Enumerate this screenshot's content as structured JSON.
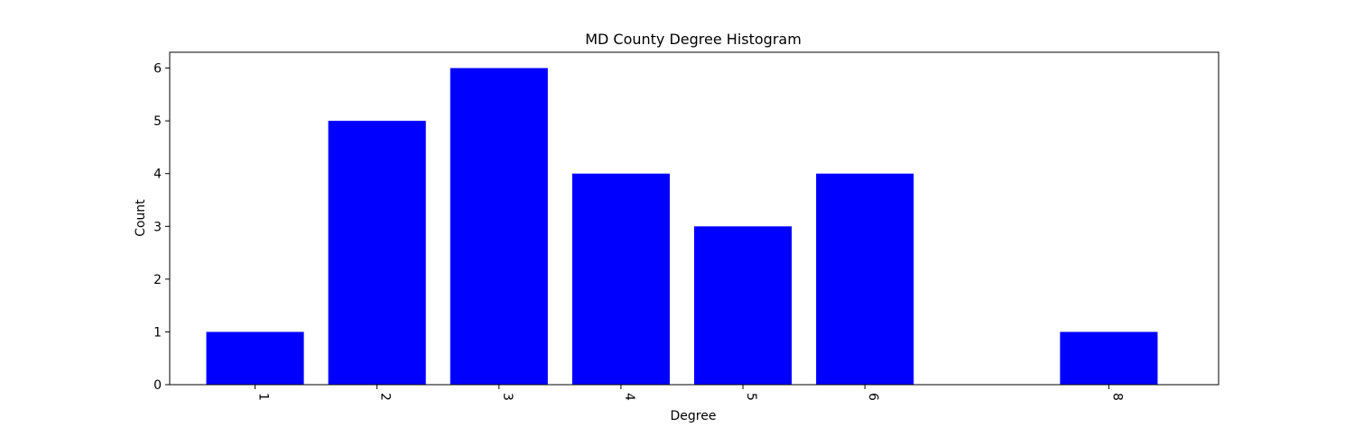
{
  "chart_data": {
    "type": "bar",
    "title": "MD County Degree Histogram",
    "xlabel": "Degree",
    "ylabel": "Count",
    "x": [
      1,
      2,
      3,
      4,
      5,
      6,
      8
    ],
    "values": [
      1,
      5,
      6,
      4,
      3,
      4,
      1
    ],
    "x_tick_labels": [
      "1",
      "2",
      "3",
      "4",
      "5",
      "6",
      "8"
    ],
    "y_ticks": [
      0,
      1,
      2,
      3,
      4,
      5,
      6
    ],
    "xlim": [
      0.3,
      8.9
    ],
    "ylim": [
      0,
      6.3
    ],
    "bar_width": 0.8,
    "x_tick_label_rotation": "-90",
    "bar_color": "#0000ff",
    "grid": false,
    "legend": "none"
  }
}
